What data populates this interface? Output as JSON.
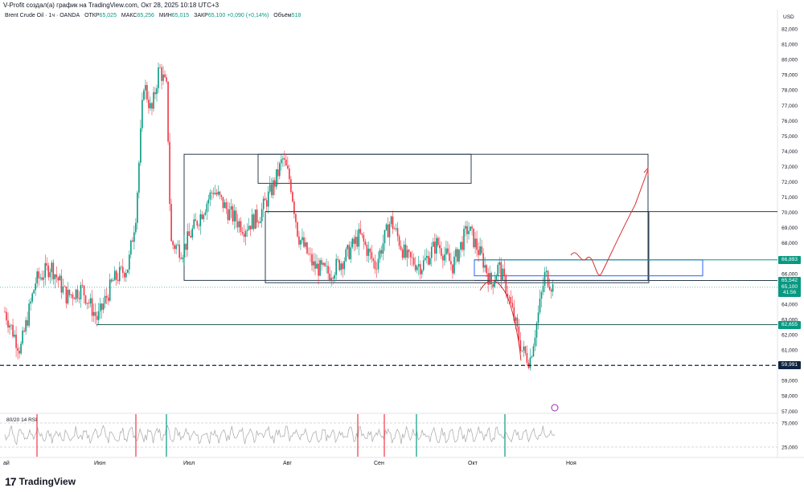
{
  "header": {
    "attribution": "V-Profit создал(а) график на TradingView.com, Окт 28, 2025 10:18 UTC+3"
  },
  "legend": {
    "symbol": "Brent Crude Oil · 1ч · OANDA",
    "open_label": "ОТКР",
    "open_value": "65,025",
    "high_label": "МАКС",
    "high_value": "65,256",
    "low_label": "МИН",
    "low_value": "65,015",
    "close_label": "ЗАКР",
    "close_value": "65,100",
    "change_value": "+0,090 (+0,14%)",
    "volume_label": "Объём",
    "volume_value": "518"
  },
  "rsi_legend": "80/20 14 RSI",
  "currency": "USD",
  "colors": {
    "up": "#089981",
    "down": "#f23645",
    "box": "#2c3e50",
    "blue_box": "#2962ff",
    "forecast": "#d32f2f",
    "rsi_line": "#b0b0b0"
  },
  "chart_data": {
    "type": "candlestick",
    "y_axis": {
      "ticks": [
        "82,000",
        "81,000",
        "80,000",
        "79,000",
        "78,000",
        "77,000",
        "76,000",
        "75,000",
        "74,000",
        "73,000",
        "72,000",
        "71,000",
        "70,000",
        "69,000",
        "68,000",
        "67,000",
        "66,000",
        "65,000",
        "64,000",
        "63,000",
        "62,000",
        "61,000",
        "60,000",
        "59,000",
        "58,000",
        "57,000"
      ],
      "range": [
        57,
        82.6
      ]
    },
    "x_axis": {
      "ticks": [
        "ай",
        "Июн",
        "Июл",
        "Авг",
        "Сен",
        "Окт",
        "Ноя"
      ]
    },
    "price_badges": [
      {
        "label": "66,893",
        "price": 66.893,
        "color": "#089981"
      },
      {
        "label": "65,542",
        "price": 65.542,
        "color": "#089981"
      },
      {
        "label": "65,100",
        "price": 65.1,
        "color": "#089981"
      },
      {
        "label": "41:56",
        "price": 64.75,
        "color": "#089981"
      },
      {
        "label": "62,655",
        "price": 62.655,
        "color": "#089981"
      },
      {
        "label": "59,991",
        "price": 59.991,
        "color": "#0d2340"
      }
    ],
    "levels": [
      {
        "price": 70.05,
        "style": "solid"
      },
      {
        "price": 66.893,
        "style": "solid"
      },
      {
        "price": 62.655,
        "style": "solid"
      },
      {
        "price": 59.991,
        "style": "dashed"
      }
    ],
    "price_path": [
      [
        0,
        63.5
      ],
      [
        0.02,
        61
      ],
      [
        0.04,
        65.5
      ],
      [
        0.06,
        66.5
      ],
      [
        0.08,
        64.5
      ],
      [
        0.1,
        65
      ],
      [
        0.12,
        63
      ],
      [
        0.14,
        65.5
      ],
      [
        0.16,
        66.5
      ],
      [
        0.17,
        70
      ],
      [
        0.18,
        78.5
      ],
      [
        0.19,
        76.5
      ],
      [
        0.2,
        79.5
      ],
      [
        0.21,
        78
      ],
      [
        0.215,
        68
      ],
      [
        0.23,
        67.5
      ],
      [
        0.25,
        69.5
      ],
      [
        0.27,
        71.5
      ],
      [
        0.29,
        70
      ],
      [
        0.31,
        69
      ],
      [
        0.33,
        69.8
      ],
      [
        0.35,
        72
      ],
      [
        0.36,
        73.5
      ],
      [
        0.37,
        72
      ],
      [
        0.38,
        68.5
      ],
      [
        0.4,
        66.5
      ],
      [
        0.42,
        66
      ],
      [
        0.44,
        67
      ],
      [
        0.46,
        68.5
      ],
      [
        0.48,
        66.5
      ],
      [
        0.5,
        69.5
      ],
      [
        0.52,
        67
      ],
      [
        0.54,
        66.5
      ],
      [
        0.56,
        68
      ],
      [
        0.58,
        66.5
      ],
      [
        0.6,
        69
      ],
      [
        0.62,
        66.8
      ],
      [
        0.63,
        65.3
      ],
      [
        0.64,
        66.5
      ],
      [
        0.65,
        65
      ],
      [
        0.66,
        63
      ],
      [
        0.67,
        61
      ],
      [
        0.68,
        60.3
      ],
      [
        0.69,
        63
      ],
      [
        0.7,
        66
      ],
      [
        0.71,
        65.1
      ]
    ],
    "rsi_ticks": [
      "75,000",
      "25,000"
    ]
  }
}
